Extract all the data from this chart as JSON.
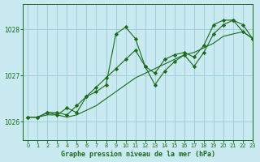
{
  "title": "Graphe pression niveau de la mer (hPa)",
  "bg_color": "#c8eaf0",
  "grid_color": "#9ecfda",
  "line_color": "#1a6b1a",
  "marker_color": "#1a6b1a",
  "xlim": [
    -0.5,
    23
  ],
  "ylim": [
    1025.6,
    1028.55
  ],
  "yticks": [
    1026,
    1027,
    1028
  ],
  "xticks": [
    0,
    1,
    2,
    3,
    4,
    5,
    6,
    7,
    8,
    9,
    10,
    11,
    12,
    13,
    14,
    15,
    16,
    17,
    18,
    19,
    20,
    21,
    22,
    23
  ],
  "series": [
    {
      "x": [
        0,
        1,
        2,
        3,
        4,
        5,
        6,
        7,
        8,
        9,
        10,
        11,
        12,
        13,
        14,
        15,
        16,
        17,
        18,
        19,
        20,
        21,
        22,
        23
      ],
      "y": [
        1026.1,
        1026.1,
        1026.2,
        1026.15,
        1026.3,
        1026.2,
        1026.55,
        1026.65,
        1026.8,
        1027.9,
        1028.05,
        1027.8,
        1027.2,
        1027.05,
        1027.35,
        1027.45,
        1027.5,
        1027.4,
        1027.65,
        1028.1,
        1028.2,
        1028.2,
        1027.95,
        1027.8
      ],
      "has_markers": true
    },
    {
      "x": [
        0,
        1,
        2,
        3,
        4,
        5,
        6,
        7,
        8,
        9,
        10,
        11,
        12,
        13,
        14,
        15,
        16,
        17,
        18,
        19,
        20,
        21,
        22,
        23
      ],
      "y": [
        1026.1,
        1026.1,
        1026.2,
        1026.2,
        1026.15,
        1026.35,
        1026.55,
        1026.75,
        1026.95,
        1027.15,
        1027.35,
        1027.55,
        1027.2,
        1026.8,
        1027.1,
        1027.3,
        1027.45,
        1027.2,
        1027.5,
        1027.9,
        1028.1,
        1028.2,
        1028.1,
        1027.8
      ],
      "has_markers": true
    },
    {
      "x": [
        0,
        1,
        2,
        3,
        4,
        5,
        6,
        7,
        8,
        9,
        10,
        11,
        12,
        13,
        14,
        15,
        16,
        17,
        18,
        19,
        20,
        21,
        22,
        23
      ],
      "y": [
        1026.1,
        1026.1,
        1026.15,
        1026.15,
        1026.1,
        1026.15,
        1026.25,
        1026.35,
        1026.5,
        1026.65,
        1026.8,
        1026.95,
        1027.05,
        1027.15,
        1027.25,
        1027.35,
        1027.45,
        1027.5,
        1027.6,
        1027.7,
        1027.85,
        1027.9,
        1027.95,
        1027.8
      ],
      "has_markers": false
    }
  ]
}
